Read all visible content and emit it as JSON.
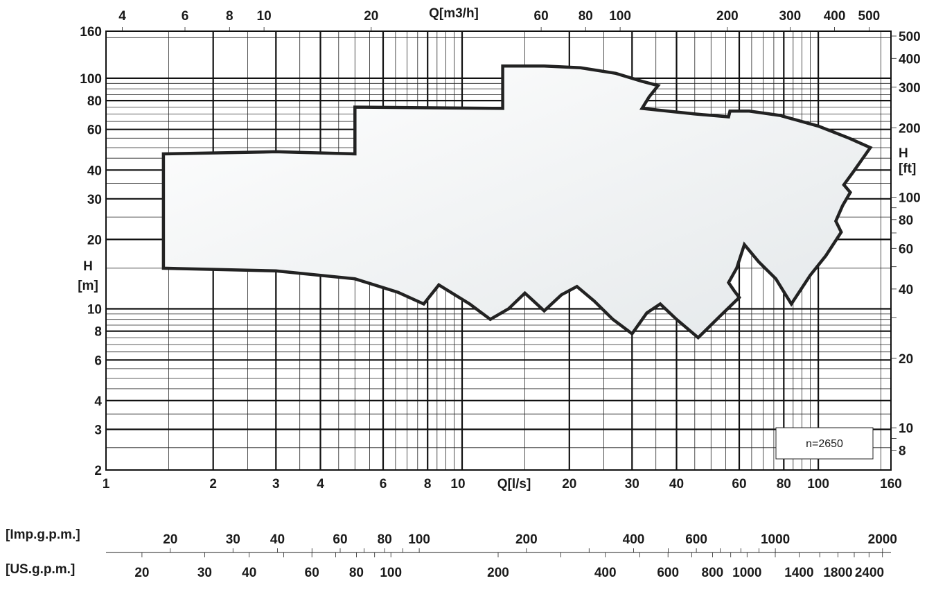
{
  "chart_data": {
    "type": "area",
    "title": "",
    "x_axis": {
      "label": "Q[l/s]",
      "scale": "log",
      "range": [
        1,
        160
      ],
      "ticks": [
        1,
        2,
        3,
        4,
        6,
        8,
        10,
        20,
        30,
        40,
        60,
        80,
        100,
        160
      ]
    },
    "y_axis": {
      "label_line1": "H",
      "label_line2": "[m]",
      "scale": "log",
      "range": [
        2,
        160
      ],
      "ticks": [
        2,
        3,
        4,
        6,
        8,
        10,
        20,
        30,
        40,
        60,
        80,
        100,
        160
      ]
    },
    "x2_axis": {
      "label": "Q[m3/h]",
      "scale": "log",
      "unit_factor": 3.6,
      "ticks": [
        4,
        6,
        8,
        10,
        20,
        60,
        80,
        100,
        200,
        300,
        400,
        500
      ]
    },
    "y2_axis": {
      "label_line1": "H",
      "label_line2": "[ft]",
      "scale": "log",
      "unit_factor": 3.281,
      "ticks": [
        8,
        10,
        20,
        40,
        60,
        80,
        100,
        200,
        300,
        400,
        500
      ]
    },
    "imp_gpm_axis": {
      "label": "[Imp.g.p.m.]",
      "unit_factor": 13.2,
      "ticks": [
        20,
        30,
        40,
        60,
        80,
        100,
        200,
        400,
        600,
        1000,
        2000
      ]
    },
    "us_gpm_axis": {
      "label": "[US.g.p.m.]",
      "unit_factor": 15.85,
      "ticks": [
        20,
        30,
        40,
        60,
        80,
        100,
        200,
        400,
        600,
        800,
        1000,
        1400,
        1800,
        2400
      ]
    },
    "speed_note": "n=2650",
    "grid": true,
    "envelope": [
      [
        1.45,
        15.0
      ],
      [
        1.45,
        47.0
      ],
      [
        3.0,
        48.0
      ],
      [
        5.0,
        47.0
      ],
      [
        5.0,
        75.0
      ],
      [
        13.0,
        74.0
      ],
      [
        13.0,
        113.0
      ],
      [
        17.0,
        113.0
      ],
      [
        21.5,
        111.0
      ],
      [
        27.0,
        105.0
      ],
      [
        32.0,
        97.0
      ],
      [
        35.5,
        93.0
      ],
      [
        33.5,
        83.0
      ],
      [
        32.0,
        74.0
      ],
      [
        45.0,
        70.0
      ],
      [
        56.0,
        68.0
      ],
      [
        56.5,
        72.0
      ],
      [
        64.0,
        72.0
      ],
      [
        78.0,
        69.0
      ],
      [
        100.0,
        62.0
      ],
      [
        122.0,
        55.0
      ],
      [
        140.0,
        50.0
      ],
      [
        125.0,
        39.0
      ],
      [
        118.0,
        34.5
      ],
      [
        123.0,
        32.0
      ],
      [
        117.0,
        28.0
      ],
      [
        112.0,
        24.0
      ],
      [
        116.0,
        21.5
      ],
      [
        105.0,
        17.0
      ],
      [
        95.0,
        14.0
      ],
      [
        84.0,
        10.5
      ],
      [
        76.0,
        13.5
      ],
      [
        68.0,
        16.0
      ],
      [
        62.0,
        19.0
      ],
      [
        59.0,
        15.0
      ],
      [
        56.0,
        13.0
      ],
      [
        58.0,
        12.0
      ],
      [
        60.0,
        11.2
      ],
      [
        53.0,
        9.3
      ],
      [
        46.0,
        7.5
      ],
      [
        40.0,
        9.0
      ],
      [
        36.0,
        10.5
      ],
      [
        33.0,
        9.6
      ],
      [
        30.0,
        7.8
      ],
      [
        26.5,
        9.0
      ],
      [
        23.5,
        10.8
      ],
      [
        21.0,
        12.5
      ],
      [
        19.0,
        11.5
      ],
      [
        17.0,
        9.8
      ],
      [
        15.0,
        11.7
      ],
      [
        13.5,
        10.0
      ],
      [
        12.0,
        9.0
      ],
      [
        10.5,
        10.5
      ],
      [
        8.6,
        12.7
      ],
      [
        7.8,
        10.5
      ],
      [
        6.6,
        11.8
      ],
      [
        5.0,
        13.5
      ],
      [
        3.0,
        14.6
      ],
      [
        1.45,
        15.0
      ]
    ]
  }
}
